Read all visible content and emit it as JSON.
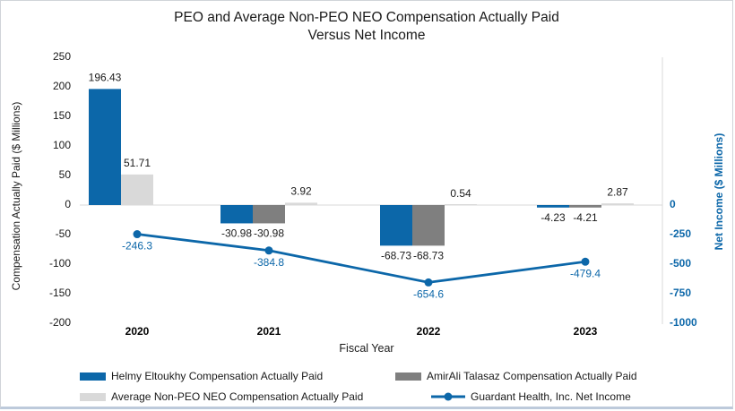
{
  "title": {
    "line1": "PEO and Average Non-PEO NEO Compensation Actually Paid",
    "line2": "Versus Net Income"
  },
  "chart_data": {
    "type": "bar+line combo",
    "categories": [
      "2020",
      "2021",
      "2022",
      "2023"
    ],
    "series": [
      {
        "name": "Helmy Eltoukhy Compensation Actually Paid",
        "type": "bar",
        "axis": "left",
        "color": "#0c67a9",
        "values": [
          196.43,
          -30.98,
          -68.73,
          -4.23
        ]
      },
      {
        "name": "AmirAli Talasaz Compensation Actually Paid",
        "type": "bar",
        "axis": "left",
        "color": "#7f7f7f",
        "values": [
          null,
          -30.98,
          -68.73,
          -4.21
        ]
      },
      {
        "name": "Average Non-PEO NEO Compensation Actually Paid",
        "type": "bar",
        "axis": "left",
        "color": "#d9d9d9",
        "values": [
          51.71,
          3.92,
          0.54,
          2.87
        ]
      },
      {
        "name": "Guardant Health, Inc. Net Income",
        "type": "line",
        "axis": "right",
        "color": "#0c67a9",
        "values": [
          -246.3,
          -384.8,
          -654.6,
          -479.4
        ]
      }
    ],
    "xlabel": "Fiscal Year",
    "left_axis": {
      "label": "Compensation Actually Paid ($ Millions)",
      "ticks": [
        250,
        200,
        150,
        100,
        50,
        0,
        -50,
        -100,
        -150,
        -200
      ],
      "range": [
        -200,
        250
      ],
      "text_color": "#1a1a1a"
    },
    "right_axis": {
      "label": "Net Income ($ Millions)",
      "ticks": [
        0,
        -250,
        -500,
        -750,
        -1000
      ],
      "range": [
        -1000,
        1250
      ],
      "text_color": "#0c67a9"
    },
    "grid": false,
    "axis_line_color": "#d9d9d9",
    "legend_position": "bottom",
    "data_labels": true
  }
}
